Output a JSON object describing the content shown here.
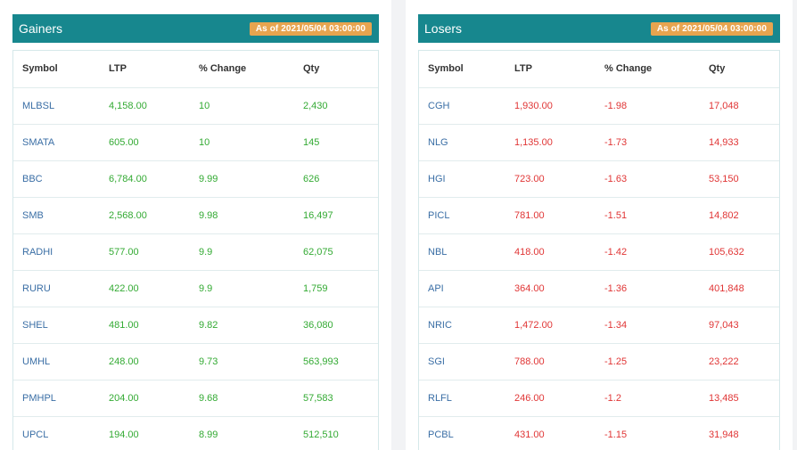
{
  "gainers": {
    "title": "Gainers",
    "as_of": "As of 2021/05/04 03:00:00",
    "columns": [
      "Symbol",
      "LTP",
      "% Change",
      "Qty"
    ],
    "rows": [
      {
        "symbol": "MLBSL",
        "ltp": "4,158.00",
        "change": "10",
        "qty": "2,430"
      },
      {
        "symbol": "SMATA",
        "ltp": "605.00",
        "change": "10",
        "qty": "145"
      },
      {
        "symbol": "BBC",
        "ltp": "6,784.00",
        "change": "9.99",
        "qty": "626"
      },
      {
        "symbol": "SMB",
        "ltp": "2,568.00",
        "change": "9.98",
        "qty": "16,497"
      },
      {
        "symbol": "RADHI",
        "ltp": "577.00",
        "change": "9.9",
        "qty": "62,075"
      },
      {
        "symbol": "RURU",
        "ltp": "422.00",
        "change": "9.9",
        "qty": "1,759"
      },
      {
        "symbol": "SHEL",
        "ltp": "481.00",
        "change": "9.82",
        "qty": "36,080"
      },
      {
        "symbol": "UMHL",
        "ltp": "248.00",
        "change": "9.73",
        "qty": "563,993"
      },
      {
        "symbol": "PMHPL",
        "ltp": "204.00",
        "change": "9.68",
        "qty": "57,583"
      },
      {
        "symbol": "UPCL",
        "ltp": "194.00",
        "change": "8.99",
        "qty": "512,510"
      }
    ]
  },
  "losers": {
    "title": "Losers",
    "as_of": "As of 2021/05/04 03:00:00",
    "columns": [
      "Symbol",
      "LTP",
      "% Change",
      "Qty"
    ],
    "rows": [
      {
        "symbol": "CGH",
        "ltp": "1,930.00",
        "change": "-1.98",
        "qty": "17,048"
      },
      {
        "symbol": "NLG",
        "ltp": "1,135.00",
        "change": "-1.73",
        "qty": "14,933"
      },
      {
        "symbol": "HGI",
        "ltp": "723.00",
        "change": "-1.63",
        "qty": "53,150"
      },
      {
        "symbol": "PICL",
        "ltp": "781.00",
        "change": "-1.51",
        "qty": "14,802"
      },
      {
        "symbol": "NBL",
        "ltp": "418.00",
        "change": "-1.42",
        "qty": "105,632"
      },
      {
        "symbol": "API",
        "ltp": "364.00",
        "change": "-1.36",
        "qty": "401,848"
      },
      {
        "symbol": "NRIC",
        "ltp": "1,472.00",
        "change": "-1.34",
        "qty": "97,043"
      },
      {
        "symbol": "SGI",
        "ltp": "788.00",
        "change": "-1.25",
        "qty": "23,222"
      },
      {
        "symbol": "RLFL",
        "ltp": "246.00",
        "change": "-1.2",
        "qty": "13,485"
      },
      {
        "symbol": "PCBL",
        "ltp": "431.00",
        "change": "-1.15",
        "qty": "31,948"
      }
    ]
  },
  "colors": {
    "header_bg": "#17878e",
    "badge_bg": "#e7a44f",
    "gain": "#33aa33",
    "loss": "#e03535",
    "symbol": "#3a6ea5"
  }
}
